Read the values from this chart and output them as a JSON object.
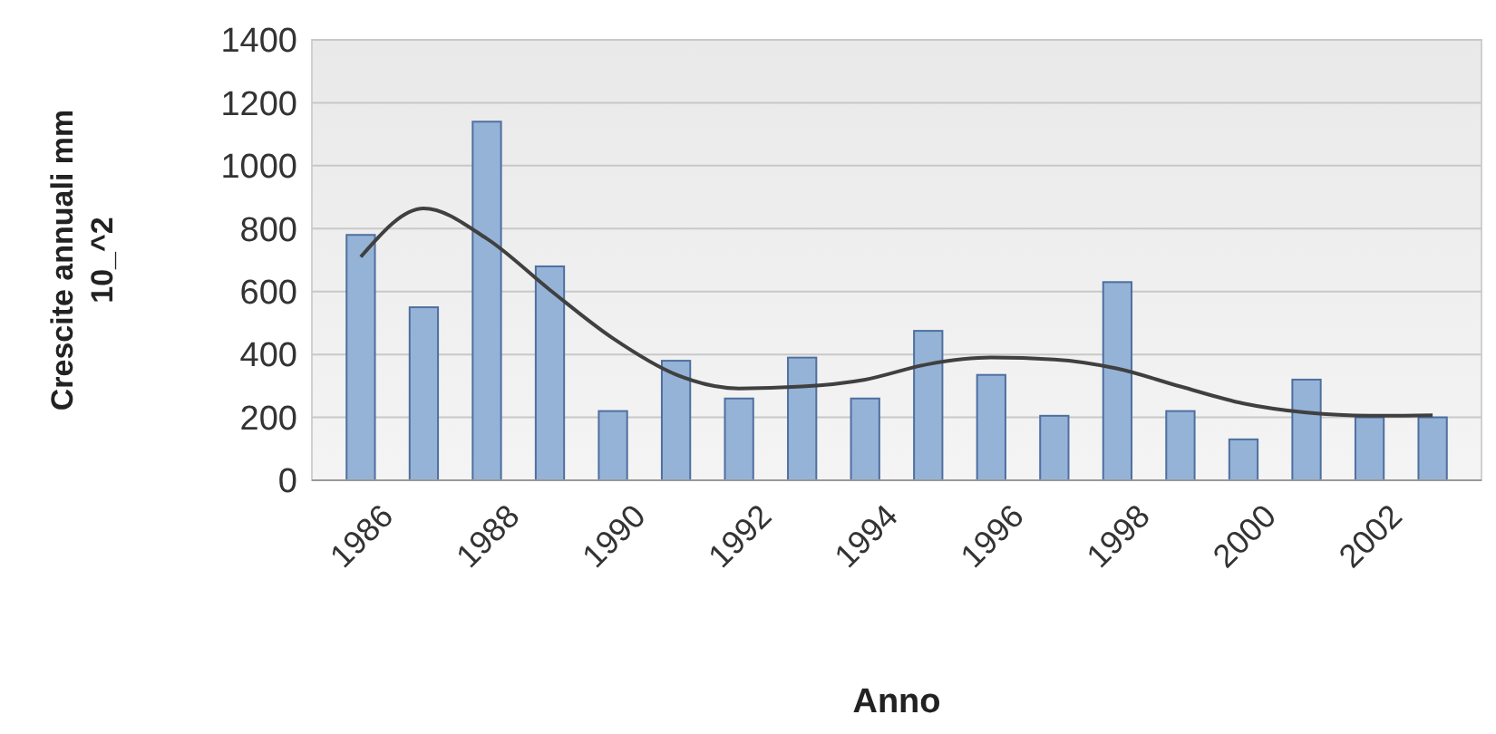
{
  "chart_data": {
    "type": "bar",
    "xlabel": "Anno",
    "ylabel": "Crescite annuali mm 10_^2",
    "categories": [
      "1986",
      null,
      "1988",
      null,
      "1990",
      null,
      "1992",
      null,
      "1994",
      null,
      "1996",
      null,
      "1998",
      null,
      "2000",
      null,
      "2002",
      null
    ],
    "series": [
      {
        "color": "#95b3d7",
        "values": [
          780,
          550,
          1140,
          680,
          220,
          380,
          260,
          390,
          260,
          475,
          335,
          205,
          630,
          220,
          130,
          320,
          200,
          200
        ]
      },
      {
        "type": "line",
        "color": "#404040",
        "values": [
          710,
          864,
          768,
          605,
          451,
          336,
          292,
          298,
          320,
          369,
          390,
          384,
          355,
          298,
          244,
          215,
          205,
          207
        ]
      }
    ],
    "ylim": [
      0,
      1400
    ],
    "yticks": [
      0,
      200,
      400,
      600,
      800,
      1000,
      1200,
      1400
    ],
    "grid": "y",
    "marker": "none",
    "line_style": "solid"
  }
}
